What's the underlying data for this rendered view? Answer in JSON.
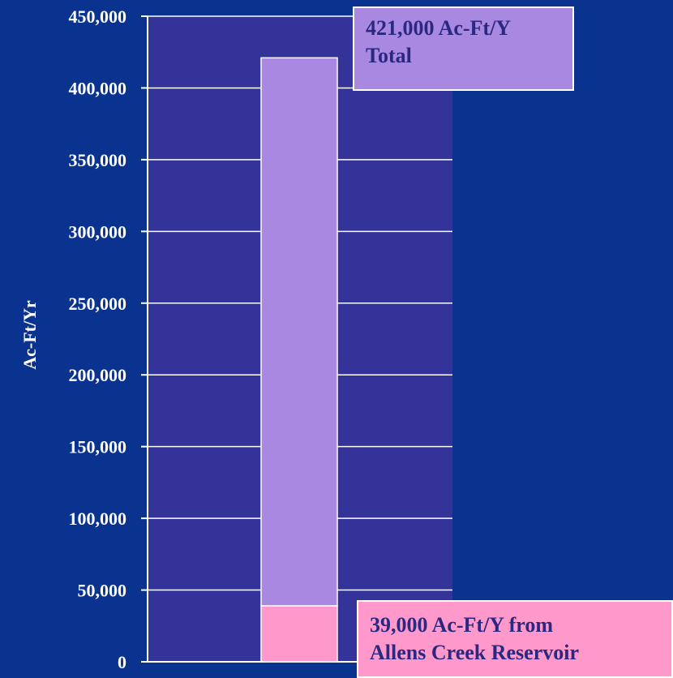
{
  "chart_data": {
    "type": "bar",
    "stacked": true,
    "categories": [
      ""
    ],
    "series": [
      {
        "values": [
          39000
        ],
        "color": "#ff99cc"
      },
      {
        "values": [
          382000
        ],
        "color": "#a888e0"
      }
    ],
    "ylabel": "Ac-Ft/Yr",
    "ylim": [
      0,
      450000
    ],
    "yticks": [
      0,
      50000,
      100000,
      150000,
      200000,
      250000,
      300000,
      350000,
      400000,
      450000
    ],
    "ytick_labels": [
      "0",
      "50,000",
      "100,000",
      "150,000",
      "200,000",
      "250,000",
      "300,000",
      "350,000",
      "400,000",
      "450,000"
    ],
    "grid": true,
    "plot_background": "#333399",
    "page_background": "#0a3390",
    "annotations": {
      "total": {
        "line1": "421,000 Ac-Ft/Y",
        "line2": "Total"
      },
      "allens": {
        "line1": "39,000 Ac-Ft/Y from",
        "line2": "Allens Creek Reservoir"
      }
    }
  }
}
